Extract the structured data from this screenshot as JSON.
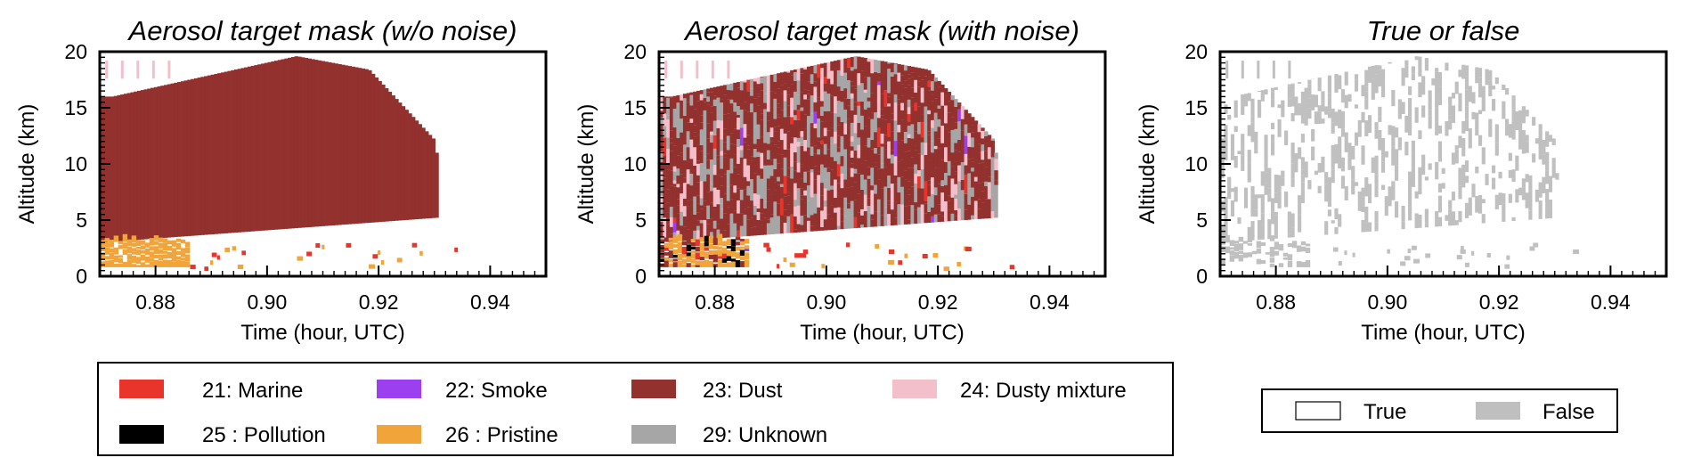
{
  "chart_data": [
    {
      "type": "heatmap",
      "title": "Aerosol target mask (w/o noise)",
      "xlabel": "Time (hour, UTC)",
      "ylabel": "Altitude (km)",
      "xlim": [
        0.87,
        0.95
      ],
      "ylim": [
        0,
        20
      ],
      "xticks": [
        "0.88",
        "0.90",
        "0.92",
        "0.94"
      ],
      "yticks": [
        "0",
        "5",
        "10",
        "15",
        "20"
      ],
      "fill": "dust-dominant",
      "regions": [
        {
          "class": "23: Dust",
          "t_start": 0.87,
          "t_end": 0.93,
          "alt_min_km": 3,
          "alt_max_km": 19.5
        },
        {
          "class": "26 : Pristine",
          "t_start": 0.87,
          "t_end": 0.886,
          "alt_min_km": 0.8,
          "alt_max_km": 3.5
        }
      ]
    },
    {
      "type": "heatmap",
      "title": "Aerosol target mask (with noise)",
      "xlabel": "Time (hour, UTC)",
      "ylabel": "Altitude (km)",
      "xlim": [
        0.87,
        0.95
      ],
      "ylim": [
        0,
        20
      ],
      "xticks": [
        "0.88",
        "0.90",
        "0.92",
        "0.94"
      ],
      "yticks": [
        "0",
        "5",
        "10",
        "15",
        "20"
      ],
      "fill": "noisy-mixed",
      "regions": [
        {
          "class": "23: Dust",
          "t_start": 0.87,
          "t_end": 0.93,
          "alt_min_km": 3,
          "alt_max_km": 19.5
        },
        {
          "class": "29: Unknown",
          "t_start": 0.87,
          "t_end": 0.93,
          "alt_min_km": 3,
          "alt_max_km": 19.5
        },
        {
          "class": "24: Dusty mixture",
          "t_start": 0.87,
          "t_end": 0.93,
          "alt_min_km": 3,
          "alt_max_km": 19.5
        }
      ]
    },
    {
      "type": "heatmap",
      "title": "True or false",
      "xlabel": "Time (hour, UTC)",
      "ylabel": "Altitude (km)",
      "xlim": [
        0.87,
        0.95
      ],
      "ylim": [
        0,
        20
      ],
      "xticks": [
        "0.88",
        "0.90",
        "0.92",
        "0.94"
      ],
      "yticks": [
        "0",
        "5",
        "10",
        "15",
        "20"
      ],
      "fill": "true-false"
    }
  ],
  "legend_classes": [
    {
      "label": "21: Marine",
      "color": "#e8342a"
    },
    {
      "label": "22: Smoke",
      "color": "#9b3ff0"
    },
    {
      "label": "23: Dust",
      "color": "#93312e"
    },
    {
      "label": "24: Dusty mixture",
      "color": "#f3bfcb"
    },
    {
      "label": "25 : Pollution",
      "color": "#000000"
    },
    {
      "label": "26 : Pristine",
      "color": "#f0a43a"
    },
    {
      "label": "29: Unknown",
      "color": "#a6a6a6"
    }
  ],
  "legend_tf": [
    {
      "label": "True",
      "color": "#ffffff"
    },
    {
      "label": "False",
      "color": "#bfbfbf"
    }
  ]
}
